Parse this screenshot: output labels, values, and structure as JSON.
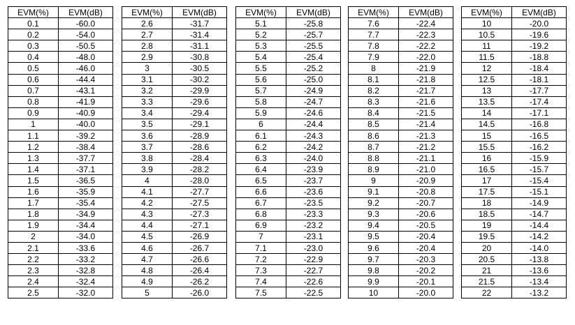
{
  "headers": {
    "pct": "EVM(%)",
    "db": "EVM(dB)"
  },
  "tables": [
    {
      "rows": [
        [
          "0.1",
          "-60.0"
        ],
        [
          "0.2",
          "-54.0"
        ],
        [
          "0.3",
          "-50.5"
        ],
        [
          "0.4",
          "-48.0"
        ],
        [
          "0.5",
          "-46.0"
        ],
        [
          "0.6",
          "-44.4"
        ],
        [
          "0.7",
          "-43.1"
        ],
        [
          "0.8",
          "-41.9"
        ],
        [
          "0.9",
          "-40.9"
        ],
        [
          "1",
          "-40.0"
        ],
        [
          "1.1",
          "-39.2"
        ],
        [
          "1.2",
          "-38.4"
        ],
        [
          "1.3",
          "-37.7"
        ],
        [
          "1.4",
          "-37.1"
        ],
        [
          "1.5",
          "-36.5"
        ],
        [
          "1.6",
          "-35.9"
        ],
        [
          "1.7",
          "-35.4"
        ],
        [
          "1.8",
          "-34.9"
        ],
        [
          "1.9",
          "-34.4"
        ],
        [
          "2",
          "-34.0"
        ],
        [
          "2.1",
          "-33.6"
        ],
        [
          "2.2",
          "-33.2"
        ],
        [
          "2.3",
          "-32.8"
        ],
        [
          "2.4",
          "-32.4"
        ],
        [
          "2.5",
          "-32.0"
        ]
      ]
    },
    {
      "rows": [
        [
          "2.6",
          "-31.7"
        ],
        [
          "2.7",
          "-31.4"
        ],
        [
          "2.8",
          "-31.1"
        ],
        [
          "2.9",
          "-30.8"
        ],
        [
          "3",
          "-30.5"
        ],
        [
          "3.1",
          "-30.2"
        ],
        [
          "3.2",
          "-29.9"
        ],
        [
          "3.3",
          "-29.6"
        ],
        [
          "3.4",
          "-29.4"
        ],
        [
          "3.5",
          "-29.1"
        ],
        [
          "3.6",
          "-28.9"
        ],
        [
          "3.7",
          "-28.6"
        ],
        [
          "3.8",
          "-28.4"
        ],
        [
          "3.9",
          "-28.2"
        ],
        [
          "4",
          "-28.0"
        ],
        [
          "4.1",
          "-27.7"
        ],
        [
          "4.2",
          "-27.5"
        ],
        [
          "4.3",
          "-27.3"
        ],
        [
          "4.4",
          "-27.1"
        ],
        [
          "4.5",
          "-26.9"
        ],
        [
          "4.6",
          "-26.7"
        ],
        [
          "4.7",
          "-26.6"
        ],
        [
          "4.8",
          "-26.4"
        ],
        [
          "4.9",
          "-26.2"
        ],
        [
          "5",
          "-26.0"
        ]
      ]
    },
    {
      "rows": [
        [
          "5.1",
          "-25.8"
        ],
        [
          "5.2",
          "-25.7"
        ],
        [
          "5.3",
          "-25.5"
        ],
        [
          "5.4",
          "-25.4"
        ],
        [
          "5.5",
          "-25.2"
        ],
        [
          "5.6",
          "-25.0"
        ],
        [
          "5.7",
          "-24.9"
        ],
        [
          "5.8",
          "-24.7"
        ],
        [
          "5.9",
          "-24.6"
        ],
        [
          "6",
          "-24.4"
        ],
        [
          "6.1",
          "-24.3"
        ],
        [
          "6.2",
          "-24.2"
        ],
        [
          "6.3",
          "-24.0"
        ],
        [
          "6.4",
          "-23.9"
        ],
        [
          "6.5",
          "-23.7"
        ],
        [
          "6.6",
          "-23.6"
        ],
        [
          "6.7",
          "-23.5"
        ],
        [
          "6.8",
          "-23.3"
        ],
        [
          "6.9",
          "-23.2"
        ],
        [
          "7",
          "-23.1"
        ],
        [
          "7.1",
          "-23.0"
        ],
        [
          "7.2",
          "-22.9"
        ],
        [
          "7.3",
          "-22.7"
        ],
        [
          "7.4",
          "-22.6"
        ],
        [
          "7.5",
          "-22.5"
        ]
      ]
    },
    {
      "rows": [
        [
          "7.6",
          "-22.4"
        ],
        [
          "7.7",
          "-22.3"
        ],
        [
          "7.8",
          "-22.2"
        ],
        [
          "7.9",
          "-22.0"
        ],
        [
          "8",
          "-21.9"
        ],
        [
          "8.1",
          "-21.8"
        ],
        [
          "8.2",
          "-21.7"
        ],
        [
          "8.3",
          "-21.6"
        ],
        [
          "8.4",
          "-21.5"
        ],
        [
          "8.5",
          "-21.4"
        ],
        [
          "8.6",
          "-21.3"
        ],
        [
          "8.7",
          "-21.2"
        ],
        [
          "8.8",
          "-21.1"
        ],
        [
          "8.9",
          "-21.0"
        ],
        [
          "9",
          "-20.9"
        ],
        [
          "9.1",
          "-20.8"
        ],
        [
          "9.2",
          "-20.7"
        ],
        [
          "9.3",
          "-20.6"
        ],
        [
          "9.4",
          "-20.5"
        ],
        [
          "9.5",
          "-20.4"
        ],
        [
          "9.6",
          "-20.4"
        ],
        [
          "9.7",
          "-20.3"
        ],
        [
          "9.8",
          "-20.2"
        ],
        [
          "9.9",
          "-20.1"
        ],
        [
          "10",
          "-20.0"
        ]
      ]
    },
    {
      "rows": [
        [
          "10",
          "-20.0"
        ],
        [
          "10.5",
          "-19.6"
        ],
        [
          "11",
          "-19.2"
        ],
        [
          "11.5",
          "-18.8"
        ],
        [
          "12",
          "-18.4"
        ],
        [
          "12.5",
          "-18.1"
        ],
        [
          "13",
          "-17.7"
        ],
        [
          "13.5",
          "-17.4"
        ],
        [
          "14",
          "-17.1"
        ],
        [
          "14.5",
          "-16.8"
        ],
        [
          "15",
          "-16.5"
        ],
        [
          "15.5",
          "-16.2"
        ],
        [
          "16",
          "-15.9"
        ],
        [
          "16.5",
          "-15.7"
        ],
        [
          "17",
          "-15.4"
        ],
        [
          "17.5",
          "-15.1"
        ],
        [
          "18",
          "-14.9"
        ],
        [
          "18.5",
          "-14.7"
        ],
        [
          "19",
          "-14.4"
        ],
        [
          "19.5",
          "-14.2"
        ],
        [
          "20",
          "-14.0"
        ],
        [
          "20.5",
          "-13.8"
        ],
        [
          "21",
          "-13.6"
        ],
        [
          "21.5",
          "-13.4"
        ],
        [
          "22",
          "-13.2"
        ]
      ]
    }
  ]
}
